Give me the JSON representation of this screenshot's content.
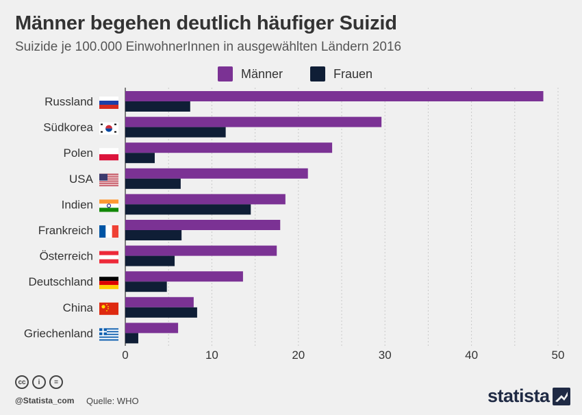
{
  "header": {
    "title": "Männer begehen deutlich häufiger Suizid",
    "subtitle": "Suizide je 100.000 EinwohnerInnen in ausgewählten Ländern 2016"
  },
  "colors": {
    "maenner": "#7b3294",
    "frauen": "#0f1e36",
    "grid": "#c8c8c8",
    "text": "#333333"
  },
  "chart_data": {
    "type": "bar",
    "orientation": "horizontal",
    "categories": [
      "Russland",
      "Südkorea",
      "Polen",
      "USA",
      "Indien",
      "Frankreich",
      "Österreich",
      "Deutschland",
      "China",
      "Griechenland"
    ],
    "flags": [
      "flag-russia-icon",
      "flag-south-korea-icon",
      "flag-poland-icon",
      "flag-usa-icon",
      "flag-india-icon",
      "flag-france-icon",
      "flag-austria-icon",
      "flag-germany-icon",
      "flag-china-icon",
      "flag-greece-icon"
    ],
    "series": [
      {
        "name": "Männer",
        "values": [
          48.3,
          29.6,
          23.9,
          21.1,
          18.5,
          17.9,
          17.5,
          13.6,
          7.9,
          6.1
        ]
      },
      {
        "name": "Frauen",
        "values": [
          7.5,
          11.6,
          3.4,
          6.4,
          14.5,
          6.5,
          5.7,
          4.8,
          8.3,
          1.5
        ]
      }
    ],
    "xticks": [
      "0",
      "10",
      "20",
      "30",
      "40",
      "50"
    ],
    "xlim": [
      0,
      50
    ],
    "grid": true,
    "legend_position": "top-center"
  },
  "footer": {
    "cc_icons": [
      "cc-icon",
      "by-icon",
      "nd-icon"
    ],
    "cc_glyphs": [
      "cc",
      "i",
      "="
    ],
    "handle": "@Statista_com",
    "source": "Quelle: WHO",
    "brand": "statista"
  }
}
